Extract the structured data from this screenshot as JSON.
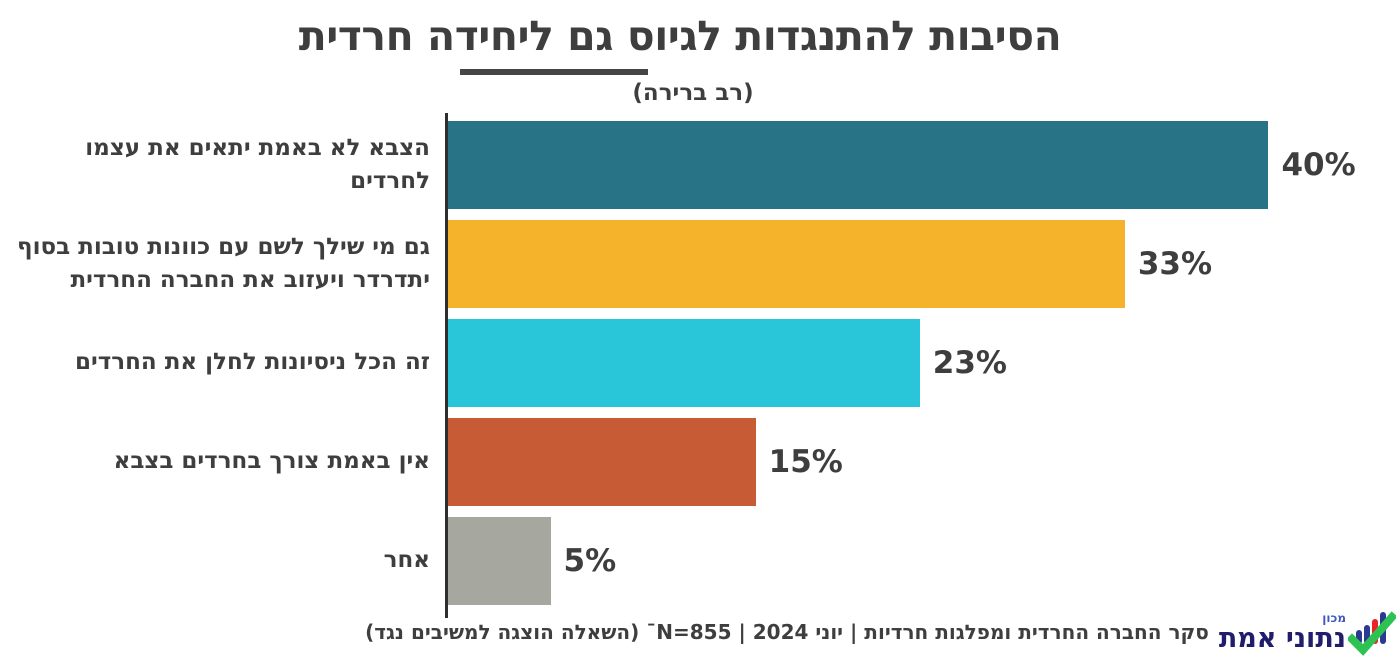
{
  "header": {
    "title": "הסיבות להתנגדות לגיוס גם ליחידה חרדית",
    "subtitle": "(רב ברירה)"
  },
  "chart_data": {
    "type": "bar",
    "orientation": "horizontal",
    "title": "הסיבות להתנגדות לגיוס גם ליחידה חרדית",
    "subtitle": "(רב ברירה)",
    "categories": [
      "הצבא לא באמת יתאים את עצמו לחרדים",
      "גם מי שילך לשם עם כוונות טובות בסוף\nיתדרדר ויעזוב את החברה החרדית",
      "זה הכל ניסיונות לחלן את החרדים",
      "אין באמת צורך בחרדים בצבא",
      "אחר"
    ],
    "values": [
      40,
      33,
      23,
      15,
      5
    ],
    "value_suffix": "%",
    "xlim": [
      0,
      45
    ],
    "bar_colors": [
      "#287486",
      "#F5B32B",
      "#29C5D8",
      "#C75B35",
      "#A6A79E"
    ],
    "grid": false,
    "legend": false,
    "value_labels_position": "end-of-bar",
    "labels_side": "left",
    "xlabel": "",
    "ylabel": ""
  },
  "footer": {
    "source": "סקר החברה החרדית ומפלגות חרדיות | יוני 2024 | N=855ˉ (השאלה הוצגה למשיבים נגד)"
  },
  "logo": {
    "tag": "מכון",
    "name": "נתוני אמת",
    "icon": "bar-chart-checkmark-icon",
    "colors": {
      "navy": "#201D6B",
      "blue": "#2B3990",
      "red": "#EC2227",
      "green": "#2DC353",
      "tag_blue": "#4159BE"
    }
  },
  "style": {
    "text_color": "#3E3E3E",
    "axis_color": "#2E2E2E",
    "underline_color": "#454545",
    "background": "#FFFFFF"
  }
}
